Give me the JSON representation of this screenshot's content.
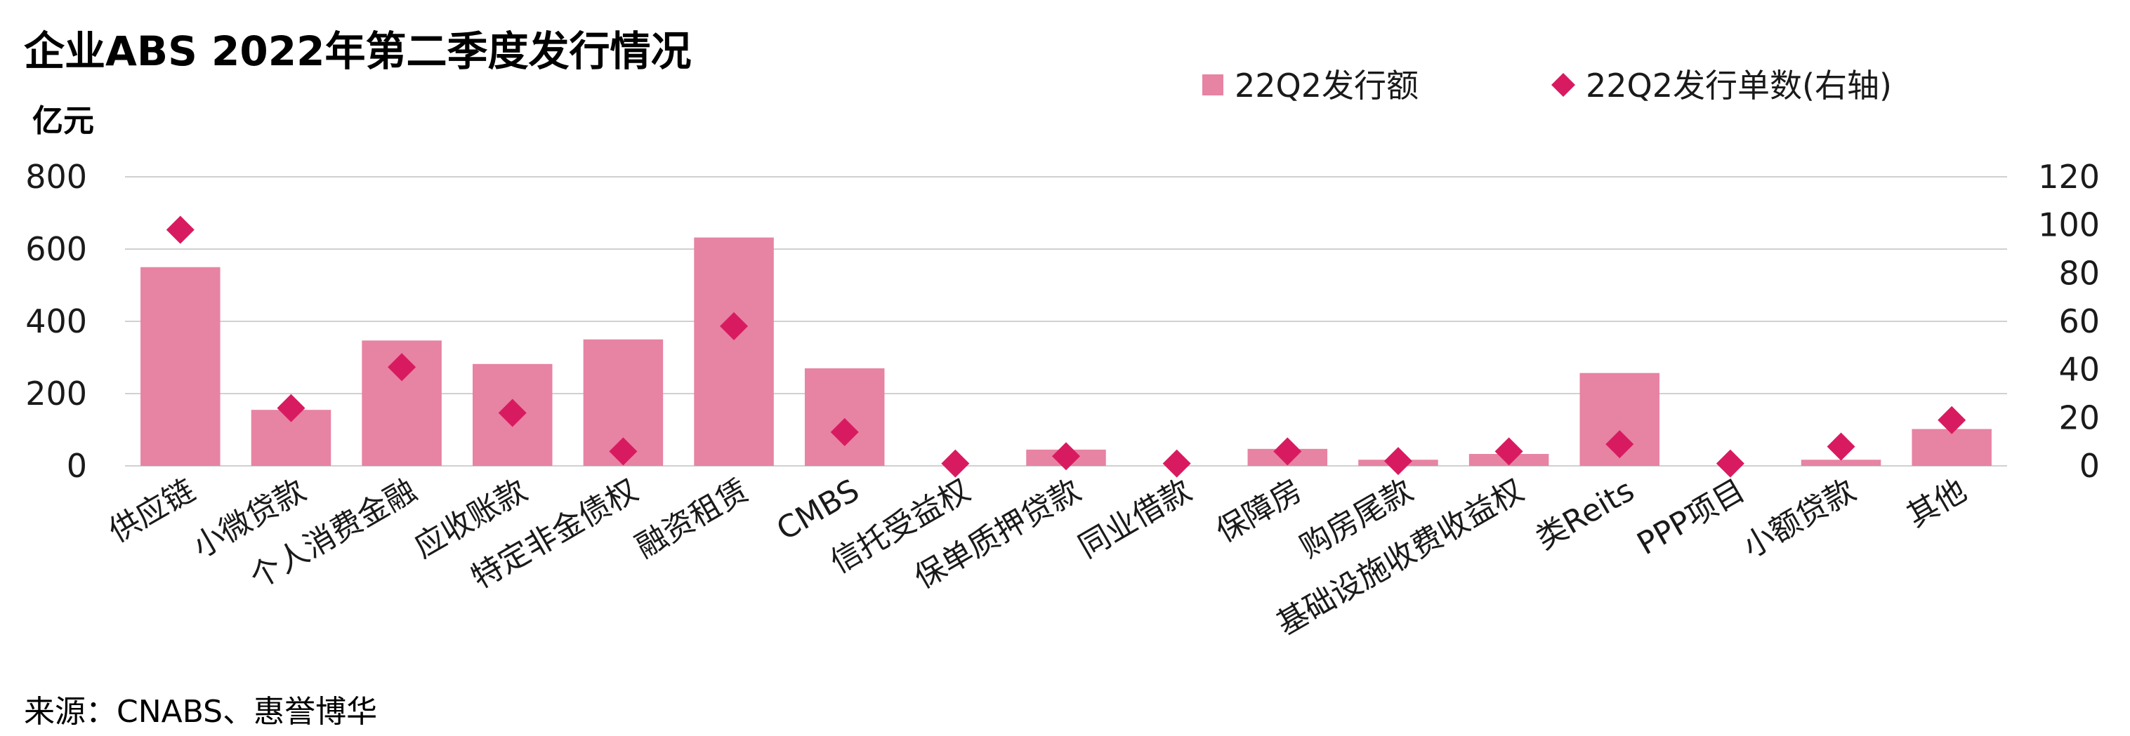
{
  "chart_data": {
    "type": "bar",
    "title": "企业ABS 2022年第二季度发行情况",
    "ylabel": "亿元",
    "source": "来源：CNABS、惠誉博华",
    "categories": [
      "供应链",
      "小微贷款",
      "个人消费金融",
      "应收账款",
      "特定非金债权",
      "融资租赁",
      "CMBS",
      "信托受益权",
      "保单质押贷款",
      "同业借款",
      "保障房",
      "购房尾款",
      "基础设施收费收益权",
      "类Reits",
      "PPP项目",
      "小额贷款",
      "其他"
    ],
    "series": [
      {
        "name": "22Q2发行额",
        "type": "bar",
        "axis": "left",
        "values": [
          550,
          155,
          347,
          282,
          350,
          632,
          270,
          0,
          45,
          0,
          47,
          17,
          33,
          257,
          0,
          17,
          102
        ]
      },
      {
        "name": "22Q2发行单数(右轴)",
        "type": "scatter",
        "axis": "right",
        "values": [
          98,
          24,
          41,
          22,
          6,
          58,
          14,
          1,
          4,
          1,
          6,
          2,
          6,
          9,
          1,
          8,
          19
        ]
      }
    ],
    "ylim": [
      0,
      800
    ],
    "yticks": [
      "0",
      "200",
      "400",
      "600",
      "800"
    ],
    "y2lim": [
      0,
      120
    ],
    "y2ticks": [
      "0",
      "20",
      "40",
      "60",
      "80",
      "100",
      "120"
    ],
    "grid": true,
    "legend_position": "top-right",
    "colors": {
      "bar": "#E783A3",
      "marker": "#D81B60",
      "grid": "#D0D0D0"
    }
  }
}
